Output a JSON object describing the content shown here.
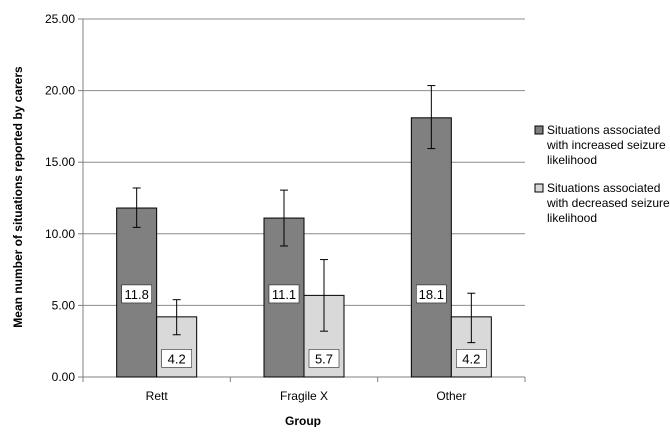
{
  "chart_data": {
    "type": "bar",
    "title": "",
    "xlabel": "Group",
    "ylabel": "Mean number of situations reported by carers",
    "categories": [
      "Rett",
      "Fragile X",
      "Other"
    ],
    "ylim": [
      0,
      25
    ],
    "y_ticks": [
      "0.00",
      "5.00",
      "10.00",
      "15.00",
      "20.00",
      "25.00"
    ],
    "grid": true,
    "legend_position": "right",
    "series": [
      {
        "name": "Situations associated with increased seizure likelihood",
        "legend_lines": [
          "Situations associated",
          "with increased seizure",
          "likelihood"
        ],
        "color": "#808080",
        "values": [
          11.8,
          11.1,
          18.1
        ],
        "labels": [
          "11.8",
          "11.1",
          "18.1"
        ],
        "error_low": [
          10.45,
          9.15,
          15.95
        ],
        "error_high": [
          13.2,
          13.05,
          20.35
        ]
      },
      {
        "name": "Situations associated with decreased seizure likelihood",
        "legend_lines": [
          "Situations associated",
          "with decreased seizure",
          "likelihood"
        ],
        "color": "#d9d9d9",
        "values": [
          4.2,
          5.7,
          4.2
        ],
        "labels": [
          "4.2",
          "5.7",
          "4.2"
        ],
        "error_low": [
          2.95,
          3.2,
          2.4
        ],
        "error_high": [
          5.4,
          8.2,
          5.85
        ]
      }
    ]
  }
}
